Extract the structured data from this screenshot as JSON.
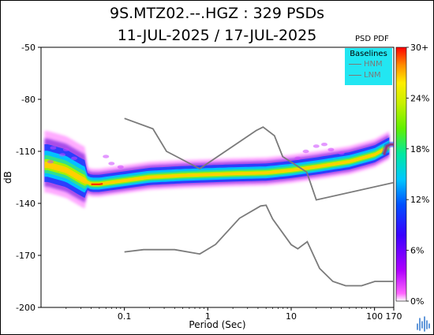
{
  "title_line1": "9S.MTZ02.--.HGZ : 329 PSDs",
  "title_line2": "11-JUL-2025 / 17-JUL-2025",
  "chart_data": {
    "type": "heatmap",
    "title": "9S.MTZ02.--.HGZ : 329 PSDs",
    "subtitle": "11-JUL-2025 / 17-JUL-2025",
    "xlabel": "Period (Sec)",
    "ylabel": "dB",
    "x_scale": "log",
    "xlim": [
      0.01,
      170
    ],
    "ylim": [
      -200,
      -50
    ],
    "x_ticks": [
      0.1,
      1,
      10,
      100,
      170
    ],
    "x_tick_labels": [
      "0.1",
      "1",
      "10",
      "100",
      "170"
    ],
    "y_ticks": [
      -50,
      -80,
      -110,
      -140,
      -170,
      -200
    ],
    "colorbar": {
      "title": "PSD PDF",
      "ticks": [
        "30+",
        "24%",
        "18%",
        "12%",
        "6%",
        "0%"
      ],
      "range": [
        0,
        30
      ],
      "colors": [
        "#ff0000",
        "#ff8c00",
        "#ffff00",
        "#7cfc00",
        "#00c8ff",
        "#0000ff",
        "#8a2be2",
        "#ff00ff",
        "#ffffff"
      ]
    },
    "legend": {
      "title": "Baselines",
      "position": "top-right",
      "entries": [
        "HNM",
        "LNM"
      ],
      "color": "#7a7a7a"
    },
    "series": [
      {
        "name": "HNM",
        "x": [
          0.1,
          0.22,
          0.32,
          0.8,
          3.8,
          4.6,
          6.3,
          7.9,
          15.4,
          20,
          170
        ],
        "y": [
          -91,
          -97,
          -110,
          -120,
          -98,
          -96,
          -101,
          -113,
          -122,
          -138,
          -128
        ]
      },
      {
        "name": "LNM",
        "x": [
          0.1,
          0.17,
          0.4,
          0.8,
          1.24,
          2.4,
          4.3,
          5,
          6,
          10,
          12,
          15.6,
          21.9,
          31.6,
          45,
          70,
          101,
          154,
          170
        ],
        "y": [
          -168,
          -166.7,
          -166.7,
          -169.2,
          -163.7,
          -148.6,
          -141.5,
          -141.1,
          -149,
          -163.8,
          -166.2,
          -162.1,
          -177.5,
          -185,
          -187.5,
          -187.5,
          -185,
          -185,
          -185
        ]
      }
    ],
    "pdf_mode": {
      "x": [
        0.012,
        0.02,
        0.03,
        0.04,
        0.05,
        0.07,
        0.1,
        0.2,
        0.5,
        1,
        2,
        5,
        10,
        20,
        50,
        100,
        130,
        170
      ],
      "y": [
        -118,
        -121,
        -126,
        -129,
        -129,
        -128,
        -127,
        -125,
        -124,
        -123.5,
        -123,
        -122.5,
        -121,
        -119,
        -116,
        -112,
        -109,
        -106
      ]
    }
  },
  "logo_icon": "wave-bars-icon"
}
